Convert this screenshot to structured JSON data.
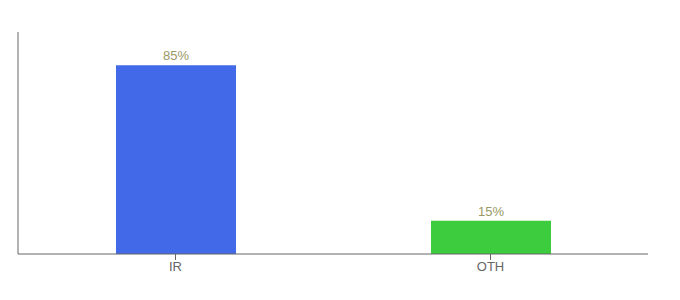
{
  "chart_data": {
    "type": "bar",
    "categories": [
      "IR",
      "OTH"
    ],
    "values": [
      85,
      15
    ],
    "value_labels": [
      "85%",
      "15%"
    ],
    "colors": [
      "#4169e8",
      "#3dcc3d"
    ],
    "ylim": [
      0,
      100
    ],
    "data_labels": true,
    "tick_labels": "x",
    "grid": false
  }
}
